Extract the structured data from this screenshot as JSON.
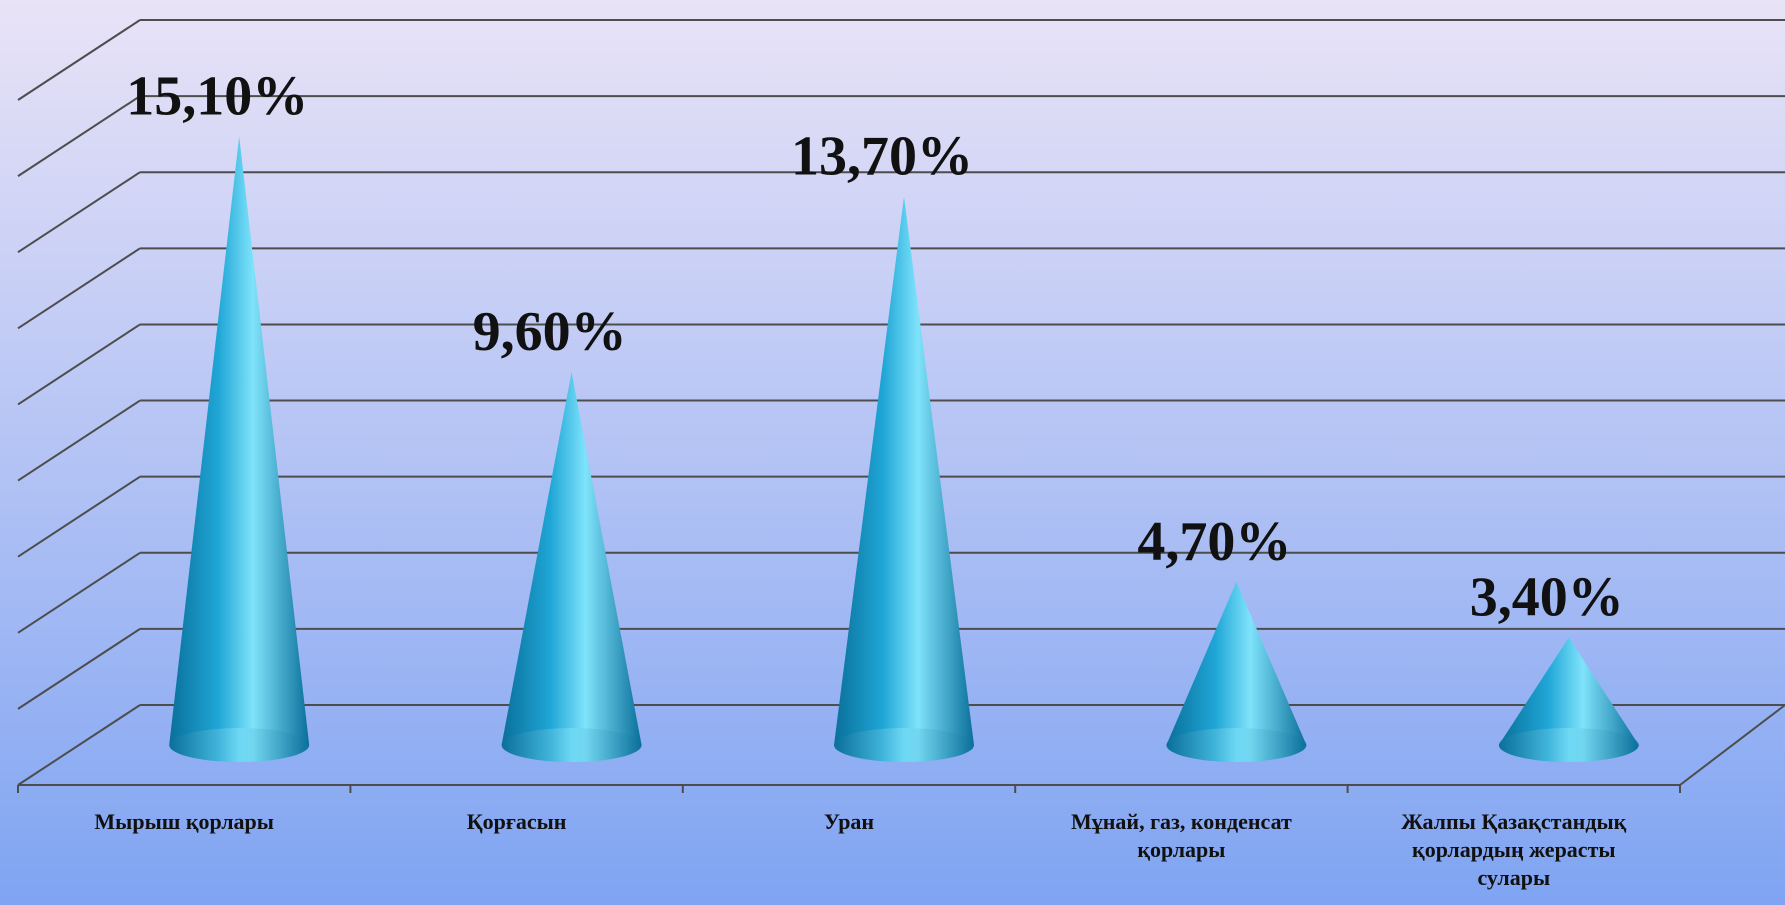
{
  "chart_data": {
    "type": "bar",
    "style": "3d-cone",
    "categories": [
      "Мырыш қорлары",
      "Қорғасын",
      "Уран",
      "Мұнай, газ, конденсат\nқорлары",
      "Жалпы Қазақстандық\nқорлардың жерасты\nсулары"
    ],
    "values": [
      15.1,
      9.6,
      13.7,
      4.7,
      3.4
    ],
    "data_labels": [
      "15,10%",
      "9,60%",
      "13,70%",
      "4,70%",
      "3,40%"
    ],
    "ylim": [
      0,
      16
    ],
    "grid": true,
    "colors": {
      "cone": "#1fa6d6",
      "cone_dark": "#0a6f9a",
      "cone_light": "#7fe3fb",
      "grid": "#4d4d4d",
      "background_top": "#e9e3f7",
      "background_bottom": "#7fa4f2"
    }
  }
}
